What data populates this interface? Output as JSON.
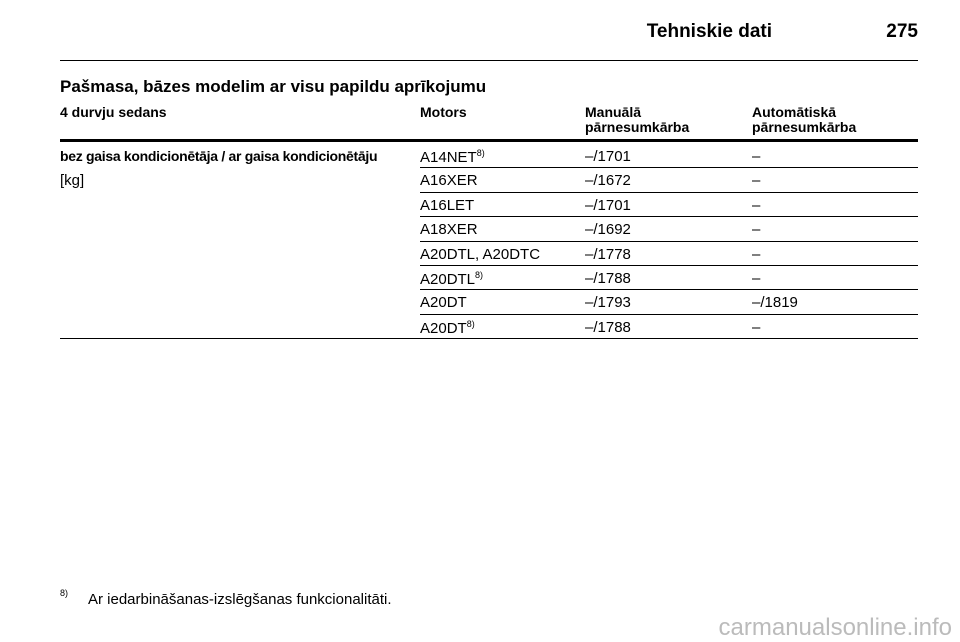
{
  "header": {
    "title": "Tehniskie dati",
    "page": "275"
  },
  "section_title": "Pašmasa, bāzes modelim ar visu papildu aprīkojumu",
  "table": {
    "columns": [
      [
        "4 durvju sedans"
      ],
      [
        "Motors"
      ],
      [
        "Manuālā",
        "pārnesumkārba"
      ],
      [
        "Automātiskā",
        "pārnesumkārba"
      ]
    ],
    "row_label": [
      "bez gaisa kondicionētāja / ar gaisa kondicionētāju",
      "[kg]"
    ],
    "rows": [
      {
        "motor": "A14NET",
        "note": "8)",
        "manual": "–/1701",
        "automatic": "–"
      },
      {
        "motor": "A16XER",
        "manual": "–/1672",
        "automatic": "–"
      },
      {
        "motor": "A16LET",
        "manual": "–/1701",
        "automatic": "–"
      },
      {
        "motor": "A18XER",
        "manual": "–/1692",
        "automatic": "–"
      },
      {
        "motor": "A20DTL, A20DTC",
        "manual": "–/1778",
        "automatic": "–"
      },
      {
        "motor": "A20DTL",
        "note": "8)",
        "manual": "–/1788",
        "automatic": "–"
      },
      {
        "motor": "A20DT",
        "manual": "–/1793",
        "automatic": "–/1819"
      },
      {
        "motor": "A20DT",
        "note": "8)",
        "manual": "–/1788",
        "automatic": "–"
      }
    ]
  },
  "footnote": {
    "mark": "8)",
    "text": "Ar iedarbināšanas-izslēgšanas funkcionalitāti."
  },
  "watermark": "carmanualsonline.info"
}
